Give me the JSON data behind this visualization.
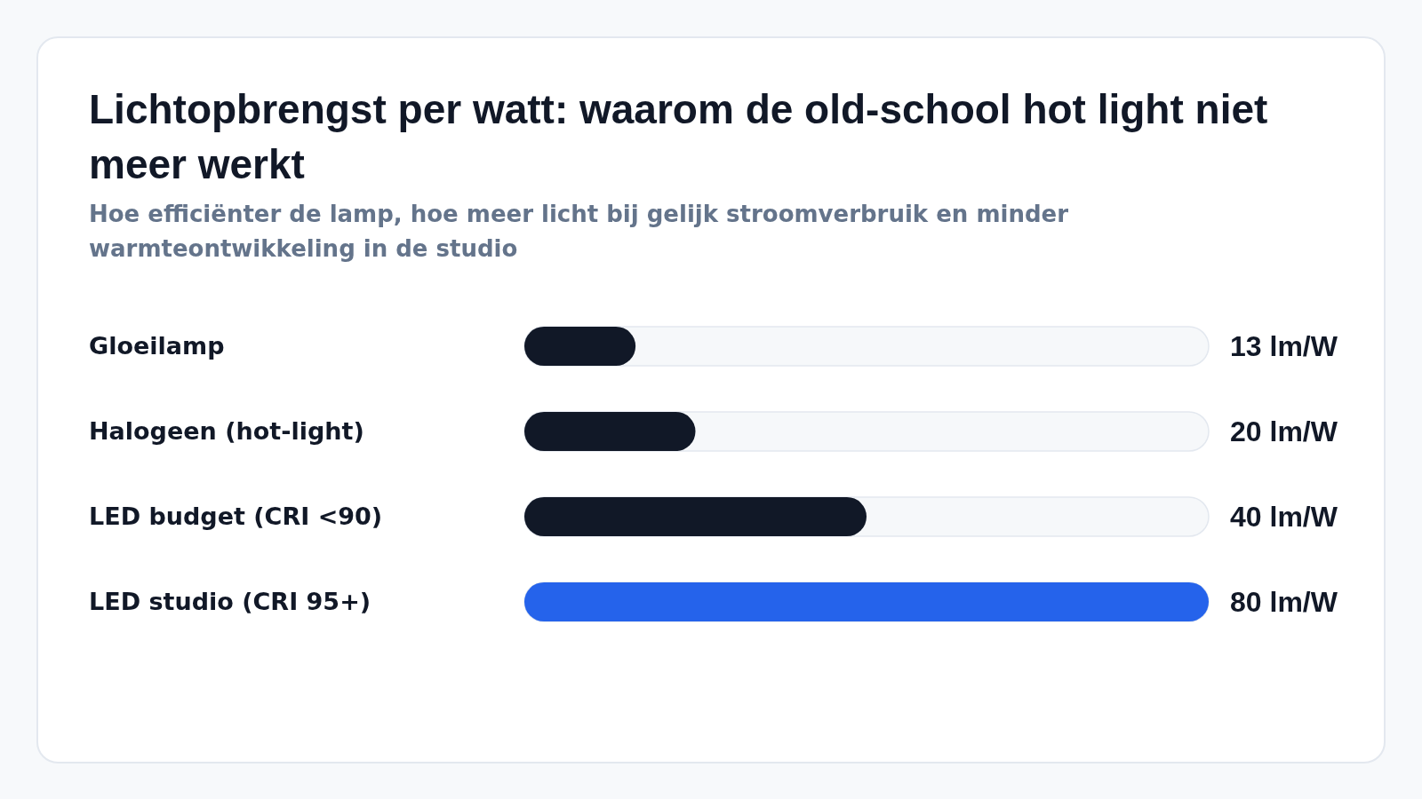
{
  "chart_data": {
    "type": "bar",
    "orientation": "horizontal",
    "title": "Lichtopbrengst per watt: waarom de old-school hot light niet meer werkt",
    "subtitle": "Hoe efficiënter de lamp, hoe meer licht bij gelijk stroomverbruik en minder warmteontwikkeling in de studio",
    "categories": [
      "Gloeilamp",
      "Halogeen (hot-light)",
      "LED budget (CRI <90)",
      "LED studio (CRI 95+)"
    ],
    "values": [
      13,
      20,
      40,
      80
    ],
    "value_labels": [
      "13 lm/W",
      "20 lm/W",
      "40 lm/W",
      "80 lm/W"
    ],
    "colors": [
      "#111827",
      "#111827",
      "#111827",
      "#2563eb"
    ],
    "xlim": [
      0,
      80
    ],
    "tick_labels": "y"
  }
}
